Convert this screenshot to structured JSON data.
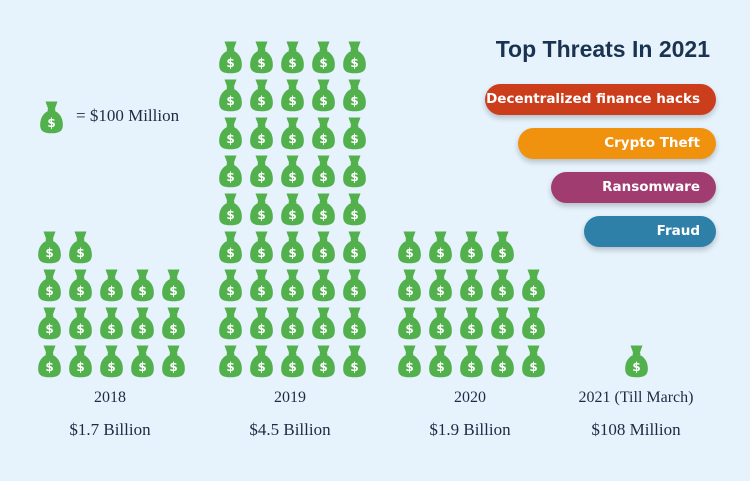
{
  "chart_data": {
    "type": "pictograph",
    "unit_label": "= $100 Million",
    "unit_value_millions": 100,
    "categories": [
      "2018",
      "2019",
      "2020",
      "2021 (Till March)"
    ],
    "values_millions": [
      1700,
      4500,
      1900,
      108
    ],
    "value_labels": [
      "$1.7 Billion",
      "$4.5 Billion",
      "$1.9 Billion",
      "$108 Million"
    ],
    "icons_shown": [
      17,
      45,
      19,
      1
    ],
    "icon_color": "#52b04d"
  },
  "threats": {
    "title": "Top Threats In 2021",
    "items": [
      {
        "label": "Decentralized finance hacks",
        "color": "#cc3d1c"
      },
      {
        "label": "Crypto Theft",
        "color": "#f0920e"
      },
      {
        "label": "Ransomware",
        "color": "#a13c71"
      },
      {
        "label": "Fraud",
        "color": "#2f80a8"
      }
    ]
  }
}
